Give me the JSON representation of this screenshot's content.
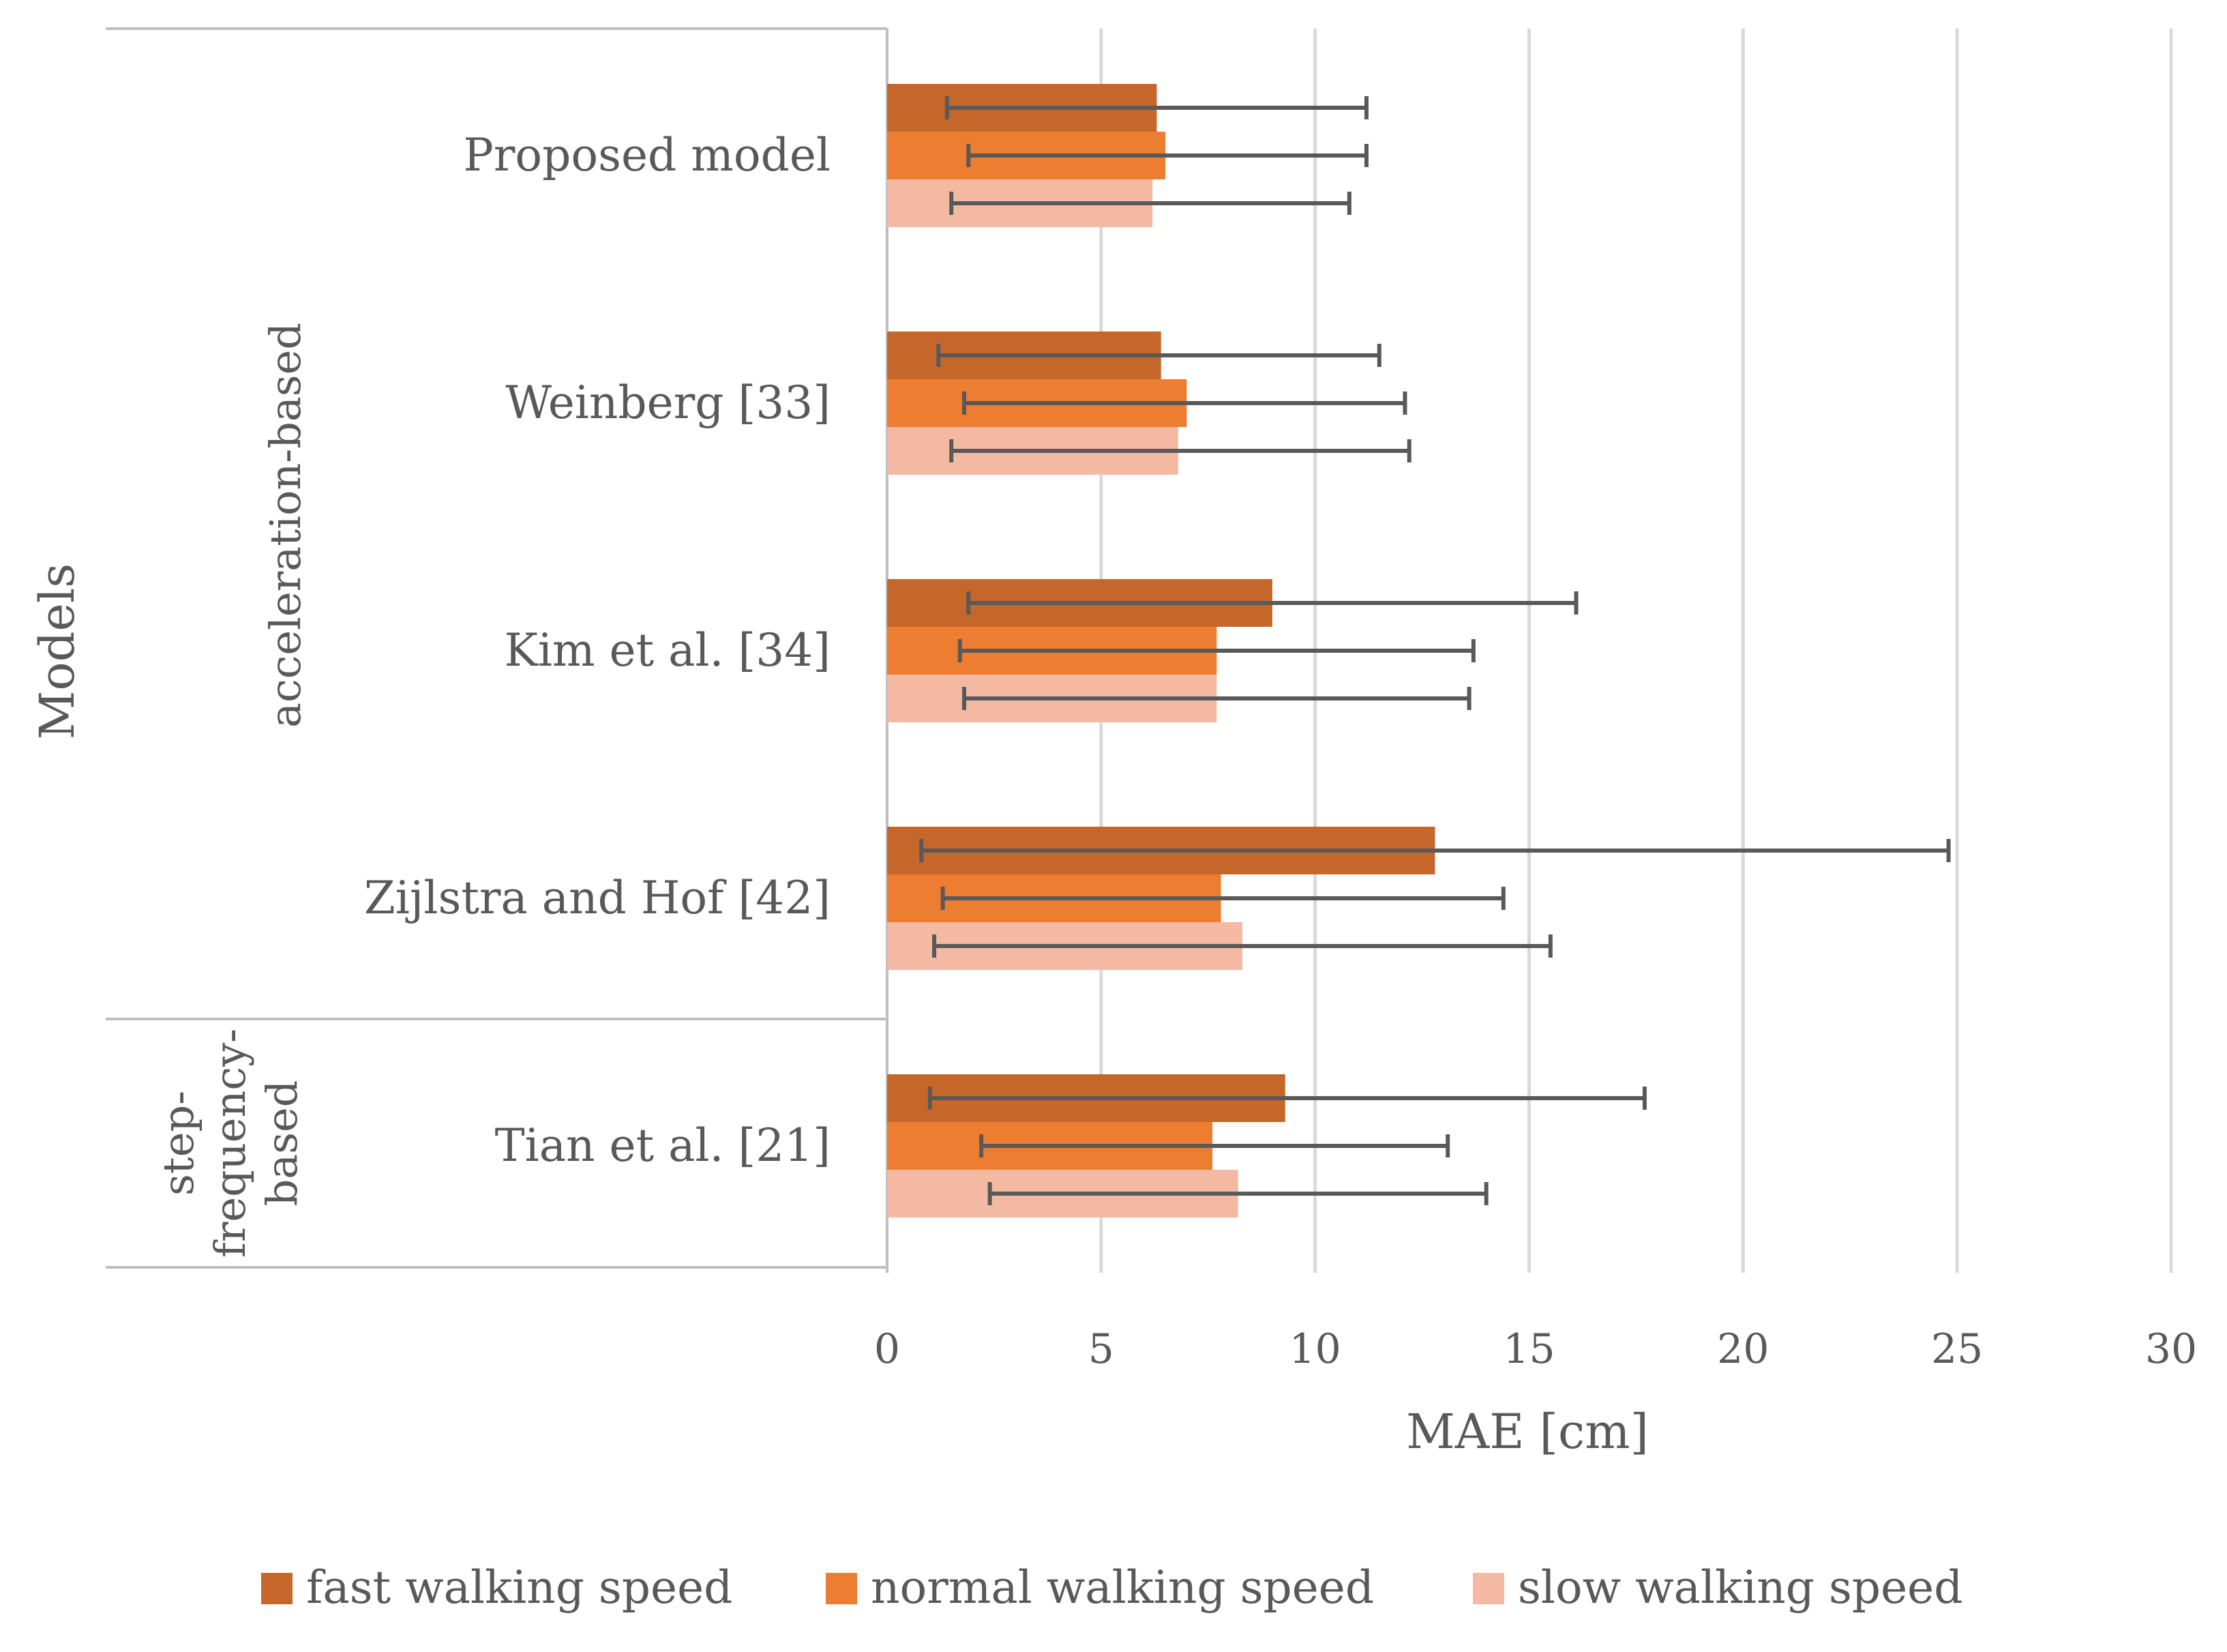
{
  "chart_data": {
    "type": "bar",
    "orientation": "horizontal",
    "title": "",
    "xlabel": "MAE [cm]",
    "ylabel": "Models",
    "xlim": [
      0,
      30
    ],
    "xticks": [
      0,
      5,
      10,
      15,
      20,
      25,
      30
    ],
    "grid": true,
    "legend_position": "bottom",
    "groups": [
      {
        "label": "acceleration-based",
        "categories": [
          "Proposed model",
          "Weinberg [33]",
          "Kim et al. [34]",
          "Zijlstra and Hof [42]"
        ]
      },
      {
        "label_lines": [
          "step-",
          "frequency-",
          "based"
        ],
        "categories": [
          "Tian et al. [21]"
        ]
      }
    ],
    "categories": [
      "Proposed model",
      "Weinberg [33]",
      "Kim et al. [34]",
      "Zijlstra and Hof [42]",
      "Tian et al. [21]"
    ],
    "series": [
      {
        "name": "fast walking speed",
        "color": "#C5672A",
        "values": [
          6.3,
          6.4,
          9.0,
          12.8,
          9.3
        ],
        "error_low": [
          1.4,
          1.2,
          1.9,
          0.8,
          1.0
        ],
        "error_high": [
          11.2,
          11.5,
          16.1,
          24.8,
          17.7
        ]
      },
      {
        "name": "normal walking speed",
        "color": "#ED7D31",
        "values": [
          6.5,
          7.0,
          7.7,
          7.8,
          7.6
        ],
        "error_low": [
          1.9,
          1.8,
          1.7,
          1.3,
          2.2
        ],
        "error_high": [
          11.2,
          12.1,
          13.7,
          14.4,
          13.1
        ]
      },
      {
        "name": "slow walking speed",
        "color": "#F4B9A2",
        "values": [
          6.2,
          6.8,
          7.7,
          8.3,
          8.2
        ],
        "error_low": [
          1.5,
          1.5,
          1.8,
          1.1,
          2.4
        ],
        "error_high": [
          10.8,
          12.2,
          13.6,
          15.5,
          14.0
        ]
      }
    ]
  }
}
